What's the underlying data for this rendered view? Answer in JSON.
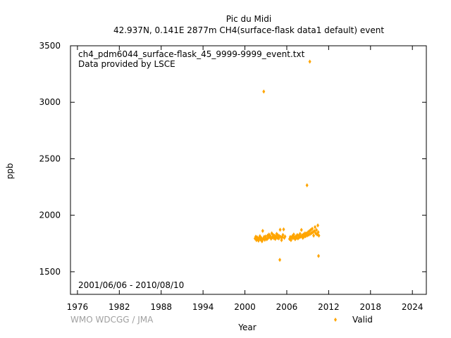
{
  "chart_data": {
    "type": "scatter",
    "title": "Pic du Midi",
    "subtitle": "42.937N, 0.141E 2877m    CH4(surface-flask data1 default) event",
    "xlabel": "Year",
    "ylabel": "ppb",
    "xlim": [
      1975,
      2026
    ],
    "ylim": [
      1300,
      3500
    ],
    "x_ticks": [
      1976,
      1982,
      1988,
      1994,
      2000,
      2006,
      2012,
      2018,
      2024
    ],
    "y_ticks": [
      1500,
      2000,
      2500,
      3000,
      3500
    ],
    "grid": false,
    "legend_position": "bottom-right",
    "annotations": {
      "filename": "ch4_pdm6044_surface-flask_45_9999-9999_event.txt",
      "provider": "Data provided by LSCE",
      "date_range": "2001/06/06 - 2010/08/10",
      "credit": "WMO WDCGG / JMA"
    },
    "marker_color": "#ffa500",
    "series": [
      {
        "name": "Valid",
        "color": "#ffa500",
        "points": [
          [
            2001.45,
            1795
          ],
          [
            2001.55,
            1810
          ],
          [
            2001.65,
            1780
          ],
          [
            2001.75,
            1805
          ],
          [
            2001.85,
            1790
          ],
          [
            2001.95,
            1775
          ],
          [
            2002.05,
            1800
          ],
          [
            2002.15,
            1815
          ],
          [
            2002.25,
            1785
          ],
          [
            2002.35,
            1798
          ],
          [
            2002.45,
            1770
          ],
          [
            2002.55,
            1862
          ],
          [
            2002.6,
            1790
          ],
          [
            2002.7,
            3095
          ],
          [
            2002.75,
            1808
          ],
          [
            2002.85,
            1782
          ],
          [
            2002.95,
            1812
          ],
          [
            2003.05,
            1795
          ],
          [
            2003.15,
            1788
          ],
          [
            2003.25,
            1820
          ],
          [
            2003.35,
            1800
          ],
          [
            2003.45,
            1830
          ],
          [
            2003.55,
            1808
          ],
          [
            2003.65,
            1815
          ],
          [
            2003.75,
            1792
          ],
          [
            2003.85,
            1840
          ],
          [
            2003.95,
            1805
          ],
          [
            2004.05,
            1825
          ],
          [
            2004.15,
            1798
          ],
          [
            2004.25,
            1818
          ],
          [
            2004.35,
            1790
          ],
          [
            2004.45,
            1810
          ],
          [
            2004.55,
            1835
          ],
          [
            2004.65,
            1800
          ],
          [
            2004.75,
            1822
          ],
          [
            2004.85,
            1795
          ],
          [
            2004.95,
            1815
          ],
          [
            2005.0,
            1605
          ],
          [
            2005.05,
            1872
          ],
          [
            2005.15,
            1808
          ],
          [
            2005.25,
            1780
          ],
          [
            2005.35,
            1805
          ],
          [
            2005.45,
            1826
          ],
          [
            2005.55,
            1875
          ],
          [
            2005.65,
            1800
          ],
          [
            2005.75,
            1812
          ],
          [
            2006.4,
            1790
          ],
          [
            2006.5,
            1808
          ],
          [
            2006.6,
            1780
          ],
          [
            2006.7,
            1800
          ],
          [
            2006.8,
            1815
          ],
          [
            2006.9,
            1798
          ],
          [
            2007.0,
            1830
          ],
          [
            2007.1,
            1805
          ],
          [
            2007.2,
            1788
          ],
          [
            2007.3,
            1812
          ],
          [
            2007.4,
            1800
          ],
          [
            2007.5,
            1825
          ],
          [
            2007.6,
            1795
          ],
          [
            2007.7,
            1818
          ],
          [
            2007.8,
            1805
          ],
          [
            2007.9,
            1835
          ],
          [
            2008.0,
            1810
          ],
          [
            2008.1,
            1870
          ],
          [
            2008.2,
            1822
          ],
          [
            2008.3,
            1800
          ],
          [
            2008.4,
            1830
          ],
          [
            2008.5,
            1812
          ],
          [
            2008.6,
            1840
          ],
          [
            2008.7,
            1815
          ],
          [
            2008.8,
            1838
          ],
          [
            2008.9,
            2265
          ],
          [
            2008.95,
            1822
          ],
          [
            2009.05,
            1850
          ],
          [
            2009.15,
            1828
          ],
          [
            2009.25,
            1860
          ],
          [
            2009.3,
            3360
          ],
          [
            2009.35,
            1835
          ],
          [
            2009.45,
            1870
          ],
          [
            2009.55,
            1842
          ],
          [
            2009.65,
            1880
          ],
          [
            2009.75,
            1850
          ],
          [
            2009.85,
            1820
          ],
          [
            2009.95,
            1860
          ],
          [
            2010.05,
            1895
          ],
          [
            2010.15,
            1840
          ],
          [
            2010.25,
            1870
          ],
          [
            2010.35,
            1830
          ],
          [
            2010.45,
            1910
          ],
          [
            2010.5,
            1850
          ],
          [
            2010.55,
            1640
          ],
          [
            2010.6,
            1820
          ]
        ]
      }
    ]
  }
}
